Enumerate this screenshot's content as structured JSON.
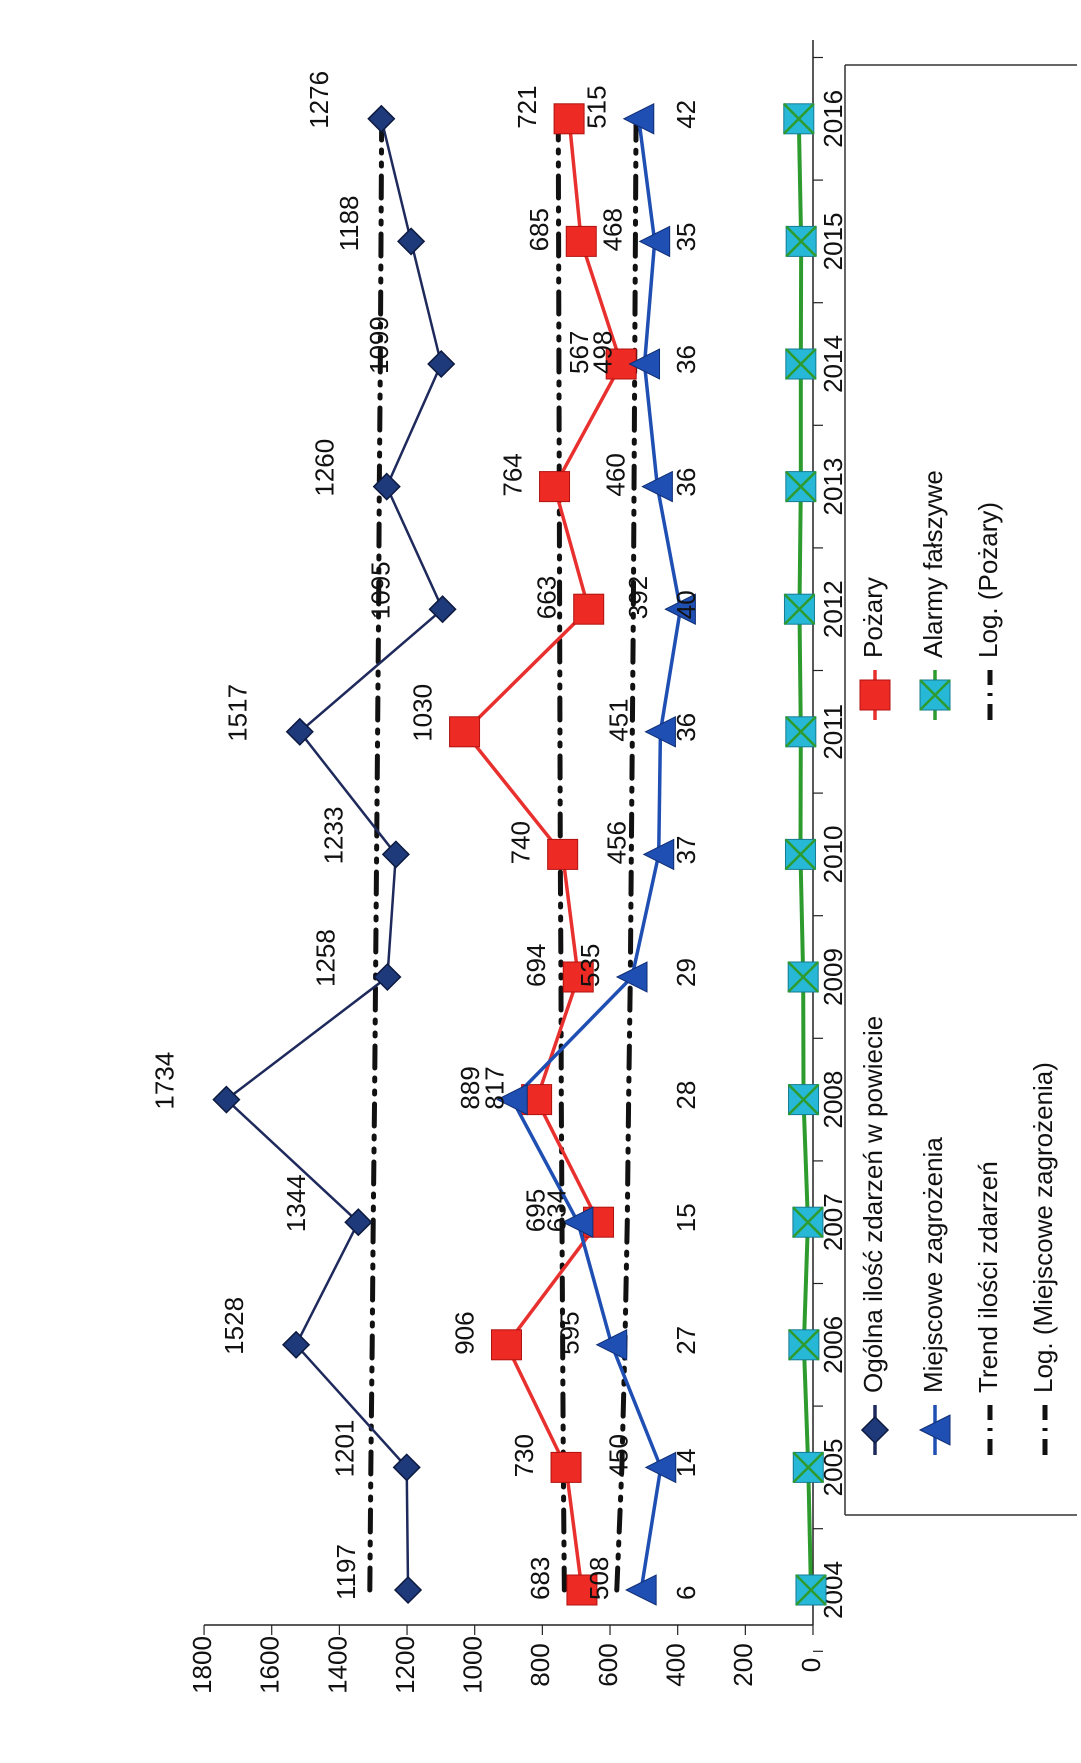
{
  "chart_data": {
    "type": "line",
    "orientation": "rotated 90 degrees counter-clockwise",
    "categories": [
      "2004",
      "2005",
      "2006",
      "2007",
      "2008",
      "2009",
      "2010",
      "2011",
      "2012",
      "2013",
      "2014",
      "2015",
      "2016"
    ],
    "ylim": [
      0,
      1800
    ],
    "yticks": [
      0,
      200,
      400,
      600,
      800,
      1000,
      1200,
      1400,
      1600,
      1800
    ],
    "grid": false,
    "legend_position": "bottom",
    "series": [
      {
        "name": "Ogólna ilość zdarzeń w powiecie",
        "kind": "line-diamond",
        "color": "#1f2a5c",
        "values": [
          1197,
          1201,
          1528,
          1344,
          1734,
          1258,
          1233,
          1517,
          1095,
          1260,
          1099,
          1188,
          1276
        ],
        "labels": [
          "1197",
          "1201",
          "1528",
          "1344",
          "1734",
          "1258",
          "1233",
          "1517",
          "1095",
          "1260",
          "1099",
          "1188",
          "1276"
        ]
      },
      {
        "name": "Pożary",
        "kind": "line-square",
        "color": "#e8302e",
        "values": [
          683,
          730,
          906,
          634,
          817,
          694,
          740,
          1030,
          663,
          764,
          567,
          685,
          721
        ],
        "labels": [
          "683",
          "730",
          "906",
          "634",
          "817",
          "694",
          "740",
          "1030",
          "663",
          "764",
          "567",
          "685",
          "721"
        ]
      },
      {
        "name": "Miejscowe zagrożenia",
        "kind": "line-triangle",
        "color": "#1f4fb3",
        "values": [
          508,
          450,
          595,
          695,
          889,
          535,
          456,
          451,
          392,
          460,
          498,
          468,
          515
        ],
        "labels": [
          "508",
          "450",
          "595",
          "695",
          "889",
          "535",
          "456",
          "451",
          "392",
          "460",
          "498",
          "468",
          "515"
        ]
      },
      {
        "name": "Alarmy fałszywe",
        "kind": "line-xsquare",
        "color": "#2e9b2e",
        "values": [
          6,
          14,
          27,
          15,
          28,
          29,
          37,
          36,
          40,
          36,
          36,
          35,
          42
        ],
        "labels": [
          "6",
          "14",
          "27",
          "15",
          "28",
          "29",
          "37",
          "36",
          "40",
          "36",
          "36",
          "35",
          "42"
        ]
      },
      {
        "name": "Trend ilości zdarzeń",
        "kind": "trend",
        "color": "#111111",
        "values": [
          1310,
          1307,
          1303,
          1300,
          1296,
          1293,
          1290,
          1287,
          1284,
          1282,
          1279,
          1277,
          1275
        ]
      },
      {
        "name": "Log. (Pożary)",
        "kind": "trend",
        "color": "#111111",
        "values": [
          735,
          738,
          740,
          742,
          744,
          745,
          747,
          748,
          749,
          750,
          751,
          752,
          753
        ]
      },
      {
        "name": "Log. (Miejscowe zagrożenia)",
        "kind": "trend",
        "color": "#111111",
        "values": [
          580,
          565,
          556,
          549,
          545,
          540,
          537,
          534,
          531,
          529,
          527,
          525,
          523
        ]
      }
    ]
  },
  "legend": {
    "items": [
      "Ogólna ilość zdarzeń w powiecie",
      "Miejscowe zagrożenia",
      "Trend ilości zdarzeń",
      "Log. (Miejscowe zagrożenia)",
      "Pożary",
      "Alarmy fałszywe",
      "Log. (Pożary)"
    ]
  },
  "colors": {
    "axis": "#222222",
    "legend_border": "#333333",
    "xsquare_fill": "#26b8d6"
  }
}
